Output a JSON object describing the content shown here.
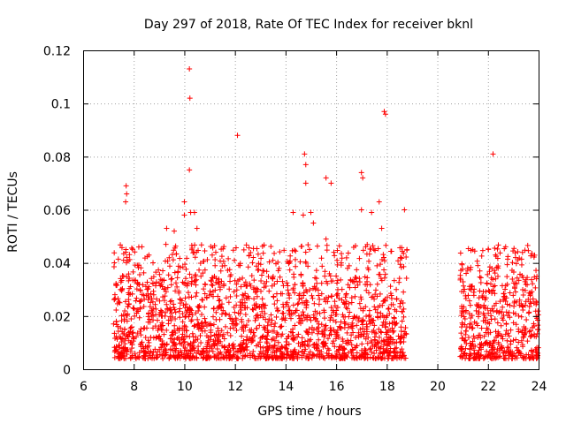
{
  "chart_data": {
    "type": "scatter",
    "title": "Day 297 of 2018, Rate Of TEC Index for receiver bknl",
    "xlabel": "GPS time / hours",
    "ylabel": "ROTI / TECUs",
    "xlim": [
      6,
      24
    ],
    "ylim": [
      0,
      0.12
    ],
    "xticks": [
      6,
      8,
      10,
      12,
      14,
      16,
      18,
      20,
      22,
      24
    ],
    "yticks": [
      0,
      0.02,
      0.04,
      0.06,
      0.08,
      0.1,
      0.12
    ],
    "xtick_labels": [
      "6",
      "8",
      "10",
      "12",
      "14",
      "16",
      "18",
      "20",
      "22",
      "24"
    ],
    "ytick_labels": [
      "0",
      "0.02",
      "0.04",
      "0.06",
      "0.08",
      "0.1",
      "0.12"
    ],
    "grid": true,
    "marker": "+",
    "color": "#ff0000",
    "data_segments": [
      {
        "x_start": 7.2,
        "x_end": 18.8,
        "typical_range": [
          0.004,
          0.035
        ]
      },
      {
        "x_start": 20.9,
        "x_end": 24.0,
        "typical_range": [
          0.004,
          0.035
        ]
      }
    ],
    "outliers": [
      {
        "x": 7.7,
        "y": 0.069
      },
      {
        "x": 7.72,
        "y": 0.066
      },
      {
        "x": 7.68,
        "y": 0.063
      },
      {
        "x": 8.2,
        "y": 0.046
      },
      {
        "x": 7.6,
        "y": 0.041
      },
      {
        "x": 9.3,
        "y": 0.053
      },
      {
        "x": 9.6,
        "y": 0.052
      },
      {
        "x": 10.0,
        "y": 0.063
      },
      {
        "x": 10.0,
        "y": 0.058
      },
      {
        "x": 10.2,
        "y": 0.113
      },
      {
        "x": 10.22,
        "y": 0.102
      },
      {
        "x": 10.2,
        "y": 0.075
      },
      {
        "x": 10.25,
        "y": 0.059
      },
      {
        "x": 10.4,
        "y": 0.059
      },
      {
        "x": 10.5,
        "y": 0.053
      },
      {
        "x": 12.1,
        "y": 0.088
      },
      {
        "x": 12.2,
        "y": 0.039
      },
      {
        "x": 13.5,
        "y": 0.041
      },
      {
        "x": 14.3,
        "y": 0.059
      },
      {
        "x": 14.7,
        "y": 0.058
      },
      {
        "x": 14.75,
        "y": 0.081
      },
      {
        "x": 14.8,
        "y": 0.077
      },
      {
        "x": 14.8,
        "y": 0.07
      },
      {
        "x": 15.0,
        "y": 0.059
      },
      {
        "x": 15.1,
        "y": 0.055
      },
      {
        "x": 15.6,
        "y": 0.072
      },
      {
        "x": 15.8,
        "y": 0.07
      },
      {
        "x": 15.6,
        "y": 0.049
      },
      {
        "x": 16.2,
        "y": 0.04
      },
      {
        "x": 17.0,
        "y": 0.074
      },
      {
        "x": 17.05,
        "y": 0.072
      },
      {
        "x": 17.0,
        "y": 0.06
      },
      {
        "x": 17.4,
        "y": 0.059
      },
      {
        "x": 17.7,
        "y": 0.063
      },
      {
        "x": 17.8,
        "y": 0.053
      },
      {
        "x": 17.9,
        "y": 0.097
      },
      {
        "x": 17.95,
        "y": 0.096
      },
      {
        "x": 18.7,
        "y": 0.06
      },
      {
        "x": 18.8,
        "y": 0.045
      },
      {
        "x": 21.2,
        "y": 0.038
      },
      {
        "x": 21.4,
        "y": 0.045
      },
      {
        "x": 21.6,
        "y": 0.039
      },
      {
        "x": 22.2,
        "y": 0.081
      },
      {
        "x": 22.3,
        "y": 0.043
      },
      {
        "x": 22.4,
        "y": 0.038
      }
    ]
  }
}
